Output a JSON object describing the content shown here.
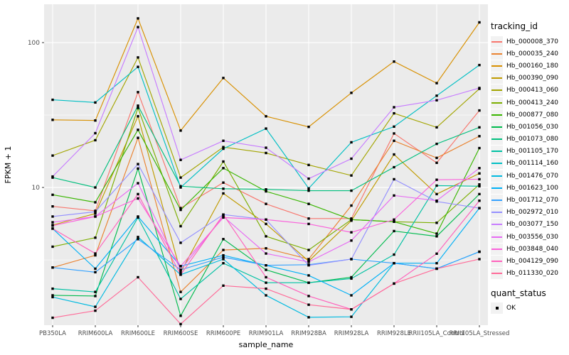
{
  "figure": {
    "x_axis_title": "sample_name",
    "y_axis_title": "FPKM + 1",
    "y_tick_labels": [
      "100",
      "10"
    ],
    "panel_bg": "#EBEBEB",
    "grid_color": "#FFFFFF",
    "tick_text_color": "#4D4D4D",
    "point_color": "#000000"
  },
  "legend": {
    "tracking_title": "tracking_id",
    "quant_title": "quant_status",
    "quant_items": [
      "OK"
    ]
  },
  "chart_data": {
    "type": "line",
    "title": "",
    "xlabel": "sample_name",
    "ylabel": "FPKM + 1",
    "y_scale": "log10",
    "ylim": [
      1.12,
      184
    ],
    "yticks": [
      10,
      100
    ],
    "yminor": [
      3.162,
      31.62
    ],
    "grid": true,
    "legend_position": "right",
    "point_shape": "filled-square-black",
    "categories": [
      "PB350LA",
      "RRIM600LA",
      "RRIM600LE",
      "RRIM600SE",
      "RRIM600PE",
      "RRIM901LA",
      "RRIM928BA",
      "RRIM928LA",
      "RRIM928LE",
      "RRII105LA_Control",
      "RRII105LA_Stressed"
    ],
    "series": [
      {
        "name": "Hb_000008_370",
        "color": "#F8766D",
        "values": [
          7.4,
          6.9,
          45.5,
          7.2,
          10.8,
          7.7,
          6.1,
          6.1,
          23.6,
          14.8,
          34
        ]
      },
      {
        "name": "Hb_000035_240",
        "color": "#EA8331",
        "values": [
          2.8,
          3.4,
          22,
          1.9,
          3.7,
          3.8,
          3.2,
          7.5,
          21,
          16,
          22.6
        ]
      },
      {
        "name": "Hb_000160_180",
        "color": "#D89000",
        "values": [
          29.3,
          29,
          147,
          24.7,
          57,
          31,
          26.2,
          45,
          74,
          52.5,
          138
        ]
      },
      {
        "name": "Hb_000390_090",
        "color": "#C09B00",
        "values": [
          5.5,
          6.6,
          31,
          2.6,
          9.1,
          5.6,
          3.1,
          5.9,
          16.9,
          9,
          12.5
        ]
      },
      {
        "name": "Hb_000413_060",
        "color": "#A3A500",
        "values": [
          16.6,
          21.2,
          79,
          11.7,
          19,
          17.3,
          14.3,
          12.1,
          32.5,
          26,
          48
        ]
      },
      {
        "name": "Hb_000413_240",
        "color": "#7CAE00",
        "values": [
          3.9,
          4.5,
          35.4,
          5.4,
          15.1,
          4.6,
          3.7,
          6,
          5.8,
          5.7,
          10.5
        ]
      },
      {
        "name": "Hb_000877_080",
        "color": "#39B600",
        "values": [
          8.9,
          7.9,
          25,
          7,
          13.6,
          9.4,
          7.7,
          6,
          5.8,
          4.8,
          18.7
        ]
      },
      {
        "name": "Hb_001056_030",
        "color": "#00BB4E",
        "values": [
          1.8,
          1.78,
          13.5,
          1.3,
          4.4,
          2.7,
          2.2,
          2.4,
          5,
          4.6,
          9
        ]
      },
      {
        "name": "Hb_001073_080",
        "color": "#00BF7D",
        "values": [
          11.7,
          10,
          36.7,
          10.2,
          9.8,
          9.7,
          9.5,
          9.5,
          13.8,
          20,
          26
        ]
      },
      {
        "name": "Hb_001105_170",
        "color": "#00C1A3",
        "values": [
          2,
          1.9,
          6.2,
          1.7,
          3,
          2.2,
          2.2,
          2.35,
          3.44,
          10.3,
          10.2
        ]
      },
      {
        "name": "Hb_001114_160",
        "color": "#00BFC4",
        "values": [
          40.3,
          38.6,
          68,
          10,
          18.5,
          25.5,
          9.85,
          20.5,
          26.3,
          43,
          70
        ]
      },
      {
        "name": "Hb_001476_070",
        "color": "#00BAE0",
        "values": [
          1.75,
          1.5,
          4.55,
          2.5,
          3.2,
          1.8,
          1.27,
          1.28,
          3,
          2.75,
          3.6
        ]
      },
      {
        "name": "Hb_001623_100",
        "color": "#00B0F6",
        "values": [
          5.2,
          2.75,
          6.3,
          2.86,
          3.4,
          2.9,
          2.47,
          1.8,
          3,
          3,
          7.2
        ]
      },
      {
        "name": "Hb_001712_070",
        "color": "#35A2FF",
        "values": [
          2.8,
          2.6,
          4.4,
          2.7,
          3.3,
          2.9,
          2.93,
          3.2,
          3,
          2.75,
          3.6
        ]
      },
      {
        "name": "Hb_002972_010",
        "color": "#9590FF",
        "values": [
          6.3,
          6.8,
          14.5,
          4.15,
          6.5,
          6,
          2.9,
          3.2,
          11.4,
          8,
          7.2
        ]
      },
      {
        "name": "Hb_003077_150",
        "color": "#C77CFF",
        "values": [
          11.9,
          23.7,
          128,
          15.5,
          21,
          18.8,
          11.5,
          15.8,
          35.8,
          40,
          48.6
        ]
      },
      {
        "name": "Hb_003556_030",
        "color": "#E76BF3",
        "values": [
          5.75,
          6.3,
          10.7,
          2.7,
          6.3,
          3.5,
          3.06,
          4.3,
          8.8,
          8.1,
          13.6
        ]
      },
      {
        "name": "Hb_003848_040",
        "color": "#FA62DB",
        "values": [
          5.45,
          6.3,
          8.4,
          2.86,
          6.2,
          6,
          5.6,
          4.9,
          6,
          11.3,
          11.4
        ]
      },
      {
        "name": "Hb_004129_090",
        "color": "#FF62BC",
        "values": [
          5.2,
          3.5,
          9,
          2.5,
          6.5,
          2.4,
          1.78,
          1.44,
          2.17,
          3.49,
          8.1
        ]
      },
      {
        "name": "Hb_011330_020",
        "color": "#FF6A98",
        "values": [
          1.26,
          1.41,
          2.4,
          1.14,
          2.1,
          2,
          1.55,
          1.44,
          2.17,
          2.75,
          3.2
        ]
      }
    ]
  }
}
